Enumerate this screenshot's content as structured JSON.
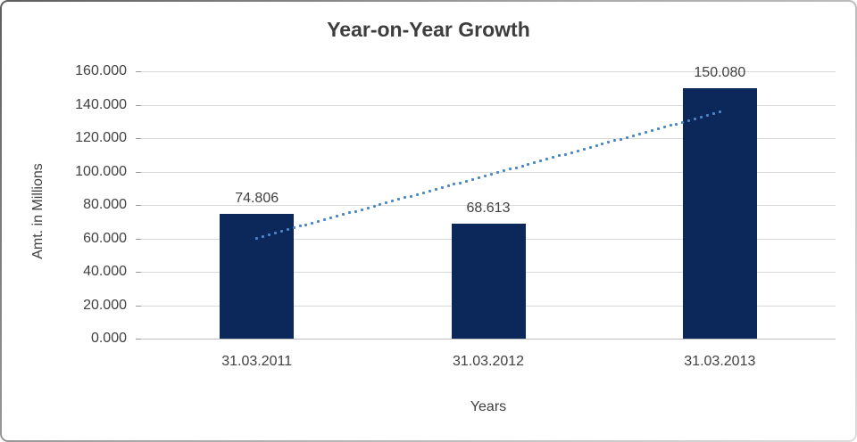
{
  "chart_data": {
    "type": "bar",
    "title": "Year-on-Year Growth",
    "xlabel": "Years",
    "ylabel": "Amt. in Millions",
    "categories": [
      "31.03.2011",
      "31.03.2012",
      "31.03.2013"
    ],
    "values": [
      74.806,
      68.613,
      150.08
    ],
    "value_labels": [
      "74.806",
      "68.613",
      "150.080"
    ],
    "ylim": [
      0,
      160
    ],
    "ytick_step": 20,
    "ytick_labels": [
      "0.000",
      "20.000",
      "40.000",
      "60.000",
      "80.000",
      "100.000",
      "120.000",
      "140.000",
      "160.000"
    ],
    "grid": "horizontal",
    "legend": "none",
    "colors": {
      "bar": "#0c275a",
      "trendline": "#4a86c8",
      "gridline": "#d9d9d9",
      "axis_line": "#bfbfbf",
      "text": "#404040",
      "title_text": "#3d3d3d"
    },
    "trendline": {
      "type": "linear",
      "style": "dotted",
      "start": {
        "category_index": 0,
        "value": 60.2
      },
      "end": {
        "category_index": 2,
        "value": 135.5
      }
    }
  }
}
